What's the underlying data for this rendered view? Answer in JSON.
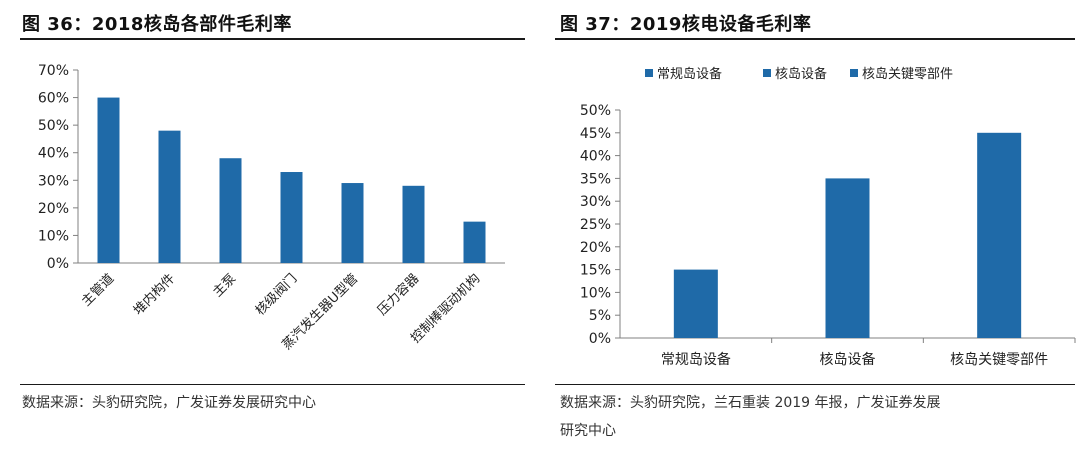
{
  "left": {
    "title": "图 36：2018核岛各部件毛利率",
    "source": "数据来源：头豹研究院，广发证券发展研究中心"
  },
  "right": {
    "title": "图 37：2019核电设备毛利率",
    "source_line1": "数据来源：头豹研究院，兰石重装 2019 年报，广发证券发展",
    "source_line2": "研究中心"
  },
  "colors": {
    "bar": "#1f6aa8",
    "axis": "#808080",
    "text": "#222222"
  },
  "chart_data": [
    {
      "type": "bar",
      "title": "",
      "categories": [
        "主管道",
        "堆内构件",
        "主泵",
        "核级阀门",
        "蒸汽发生器U型管",
        "压力容器",
        "控制棒驱动机构"
      ],
      "values": [
        60,
        48,
        38,
        33,
        29,
        28,
        15
      ],
      "ylim": [
        0,
        70
      ],
      "yticks": [
        "0%",
        "10%",
        "20%",
        "30%",
        "40%",
        "50%",
        "60%",
        "70%"
      ],
      "grid": false,
      "legend": "none"
    },
    {
      "type": "bar",
      "title": "",
      "categories": [
        "常规岛设备",
        "核岛设备",
        "核岛关键零部件"
      ],
      "values": [
        15,
        35,
        45
      ],
      "ylim": [
        0,
        50
      ],
      "yticks": [
        "0%",
        "5%",
        "10%",
        "15%",
        "20%",
        "25%",
        "30%",
        "35%",
        "40%",
        "45%",
        "50%"
      ],
      "legend_entries": [
        "常规岛设备",
        "核岛设备",
        "核岛关键零部件"
      ],
      "legend": "top",
      "grid": false
    }
  ]
}
